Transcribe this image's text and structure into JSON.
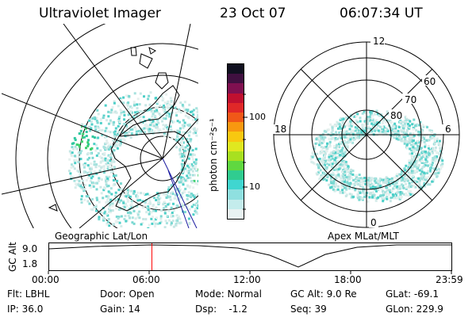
{
  "header": {
    "title": "Ultraviolet Imager",
    "date": "23 Oct 07",
    "time": "06:07:34 UT"
  },
  "colorbar": {
    "label": "photon cm⁻²s⁻¹",
    "tick_100": "100",
    "tick_10": "10",
    "colors": [
      "#e8f2f2",
      "#c4ecec",
      "#8fe0e0",
      "#40d6d0",
      "#30cc90",
      "#60d840",
      "#a8e020",
      "#e0e820",
      "#f8c810",
      "#f89810",
      "#f05818",
      "#e02828",
      "#c01030",
      "#801050",
      "#401040",
      "#101020"
    ]
  },
  "left_map": {
    "caption": "Geographic Lat/Lon"
  },
  "right_map": {
    "caption": "Apex MLat/MLT",
    "mlt_12": "12",
    "mlt_18": "18",
    "mlt_6": "6",
    "mlt_0": "0",
    "lat_60": "60",
    "lat_70": "70",
    "lat_80": "80"
  },
  "timeline": {
    "axis_label": "GC Alt",
    "y_top": "9.0",
    "y_bottom": "1.8",
    "x_ticks": [
      "00:00",
      "06:00",
      "12:00",
      "18:00",
      "23:59"
    ],
    "current_time_fraction": 0.2553
  },
  "footer": {
    "flt": "Flt: LBHL",
    "ip": "IP: 36.0",
    "door": "Door: Open",
    "gain": "Gain: 14",
    "mode": "Mode: Normal",
    "dsp": "Dsp:    -1.2",
    "gcalt": "GC Alt: 9.0 Re",
    "seq": "Seq: 39",
    "glat": "GLat: -69.1",
    "glon": "GLon: 229.9"
  }
}
